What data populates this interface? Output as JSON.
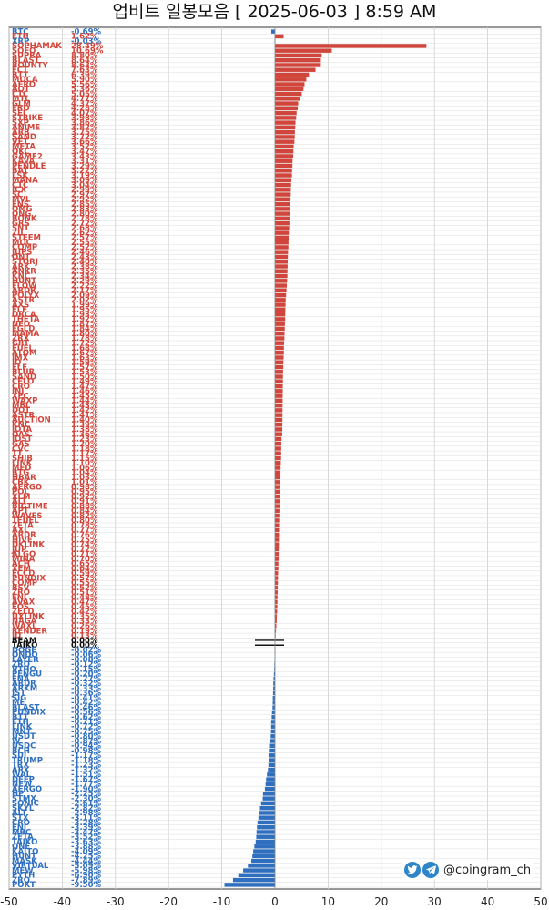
{
  "title": "업비트 일봉모음 [ 2025-06-03 ]  8:59 AM",
  "brand": {
    "handle": "@coingram_ch",
    "icons": [
      "twitter-icon",
      "telegram-icon"
    ]
  },
  "colors": {
    "up": "#d0463c",
    "down": "#2f6fbf",
    "flat": "#111111",
    "grid": "#cfcfcf"
  },
  "chart_data": {
    "type": "bar",
    "orientation": "horizontal",
    "grid": true,
    "xlim": [
      -50,
      50
    ],
    "xticks": [
      -50,
      -40,
      -30,
      -20,
      -10,
      0,
      10,
      20,
      30,
      40,
      50
    ],
    "top_rows": [
      {
        "symbol": "BTC",
        "label": "-0.69%",
        "value": -0.69
      },
      {
        "symbol": "ETH",
        "label": "1.62%",
        "value": 1.62
      },
      {
        "symbol": "XRP",
        "label": "-0.03%",
        "value": -0.03
      }
    ],
    "rows": [
      {
        "symbol": "SOPHAMAK",
        "label": "28.49%",
        "value": 28.49
      },
      {
        "symbol": "SOFO",
        "label": "10.69%",
        "value": 10.69
      },
      {
        "symbol": "SUPRA",
        "label": "8.80%",
        "value": 8.8
      },
      {
        "symbol": "BLAST",
        "label": "8.64%",
        "value": 8.64
      },
      {
        "symbol": "BOUNTY",
        "label": "8.63%",
        "value": 8.63
      },
      {
        "symbol": "FCT",
        "label": "7.63%",
        "value": 7.63
      },
      {
        "symbol": "BTT",
        "label": "6.39%",
        "value": 6.39
      },
      {
        "symbol": "MOCA",
        "label": "5.90%",
        "value": 5.9
      },
      {
        "symbol": "AERO",
        "label": "5.56%",
        "value": 5.56
      },
      {
        "symbol": "AQT",
        "label": "5.36%",
        "value": 5.36
      },
      {
        "symbol": "CTC",
        "label": "5.05%",
        "value": 5.05
      },
      {
        "symbol": "MTL",
        "label": "4.77%",
        "value": 4.77
      },
      {
        "symbol": "GLM",
        "label": "4.37%",
        "value": 4.37
      },
      {
        "symbol": "ERO",
        "label": "4.28%",
        "value": 4.28
      },
      {
        "symbol": "SEI",
        "label": "4.07%",
        "value": 4.07
      },
      {
        "symbol": "STRIKE",
        "label": "3.98%",
        "value": 3.98
      },
      {
        "symbol": "SXP",
        "label": "3.86%",
        "value": 3.86
      },
      {
        "symbol": "ANIME",
        "label": "3.82%",
        "value": 3.82
      },
      {
        "symbol": "ARB",
        "label": "3.75%",
        "value": 3.75
      },
      {
        "symbol": "SAND",
        "label": "3.72%",
        "value": 3.72
      },
      {
        "symbol": "VET",
        "label": "3.66%",
        "value": 3.66
      },
      {
        "symbol": "META",
        "label": "3.52%",
        "value": 3.52
      },
      {
        "symbol": "QKC",
        "label": "3.47%",
        "value": 3.47
      },
      {
        "symbol": "GAME2",
        "label": "3.43%",
        "value": 3.43
      },
      {
        "symbol": "KAVA",
        "label": "3.31%",
        "value": 3.31
      },
      {
        "symbol": "PENDLE",
        "label": "3.29%",
        "value": 3.29
      },
      {
        "symbol": "BAT",
        "label": "3.22%",
        "value": 3.22
      },
      {
        "symbol": "LSK",
        "label": "3.19%",
        "value": 3.19
      },
      {
        "symbol": "MANA",
        "label": "3.09%",
        "value": 3.09
      },
      {
        "symbol": "CTC",
        "label": "3.04%",
        "value": 3.04
      },
      {
        "symbol": "ICX",
        "label": "2.99%",
        "value": 2.99
      },
      {
        "symbol": "SC",
        "label": "2.97%",
        "value": 2.97
      },
      {
        "symbol": "MVL",
        "label": "2.92%",
        "value": 2.92
      },
      {
        "symbol": "ENS",
        "label": "2.85%",
        "value": 2.85
      },
      {
        "symbol": "OMG",
        "label": "2.83%",
        "value": 2.83
      },
      {
        "symbol": "ONG",
        "label": "2.80%",
        "value": 2.8
      },
      {
        "symbol": "BONK",
        "label": "2.78%",
        "value": 2.78
      },
      {
        "symbol": "GRS",
        "label": "2.72%",
        "value": 2.72
      },
      {
        "symbol": "SNT",
        "label": "2.68%",
        "value": 2.68
      },
      {
        "symbol": "ZIL",
        "label": "2.62%",
        "value": 2.62
      },
      {
        "symbol": "STEEM",
        "label": "2.57%",
        "value": 2.57
      },
      {
        "symbol": "MOC",
        "label": "2.55%",
        "value": 2.55
      },
      {
        "symbol": "COMP",
        "label": "2.52%",
        "value": 2.52
      },
      {
        "symbol": "JUPS",
        "label": "2.46%",
        "value": 2.46
      },
      {
        "symbol": "ONT",
        "label": "2.43%",
        "value": 2.43
      },
      {
        "symbol": "STORJ",
        "label": "2.40%",
        "value": 2.4
      },
      {
        "symbol": "ARK",
        "label": "2.38%",
        "value": 2.38
      },
      {
        "symbol": "ANKR",
        "label": "2.35%",
        "value": 2.35
      },
      {
        "symbol": "KNC",
        "label": "2.34%",
        "value": 2.34
      },
      {
        "symbol": "HUNT",
        "label": "2.29%",
        "value": 2.29
      },
      {
        "symbol": "FLOW",
        "label": "2.22%",
        "value": 2.22
      },
      {
        "symbol": "ARDR",
        "label": "2.17%",
        "value": 2.17
      },
      {
        "symbol": "POLYX",
        "label": "2.09%",
        "value": 2.09
      },
      {
        "symbol": "ASTR",
        "label": "2.02%",
        "value": 2.02
      },
      {
        "symbol": "AXS",
        "label": "1.99%",
        "value": 1.99
      },
      {
        "symbol": "ELF",
        "label": "1.95%",
        "value": 1.95
      },
      {
        "symbol": "ORCA",
        "label": "1.93%",
        "value": 1.93
      },
      {
        "symbol": "THETA",
        "label": "1.92%",
        "value": 1.92
      },
      {
        "symbol": "NEO",
        "label": "1.87%",
        "value": 1.87
      },
      {
        "symbol": "EGLD",
        "label": "1.84%",
        "value": 1.84
      },
      {
        "symbol": "MAMA",
        "label": "1.80%",
        "value": 1.8
      },
      {
        "symbol": "ZRX",
        "label": "1.78%",
        "value": 1.78
      },
      {
        "symbol": "GRT",
        "label": "1.72%",
        "value": 1.72
      },
      {
        "symbol": "FUEL",
        "label": "1.68%",
        "value": 1.68
      },
      {
        "symbol": "ATOM",
        "label": "1.67%",
        "value": 1.67
      },
      {
        "symbol": "IMX",
        "label": "1.63%",
        "value": 1.63
      },
      {
        "symbol": "IQ",
        "label": "1.59%",
        "value": 1.59
      },
      {
        "symbol": "ELF",
        "label": "1.57%",
        "value": 1.57
      },
      {
        "symbol": "BLUR",
        "label": "1.53%",
        "value": 1.53
      },
      {
        "symbol": "SAND",
        "label": "1.50%",
        "value": 1.5
      },
      {
        "symbol": "CELO",
        "label": "1.49%",
        "value": 1.49
      },
      {
        "symbol": "CRO",
        "label": "1.47%",
        "value": 1.47
      },
      {
        "symbol": "INJ",
        "label": "1.46%",
        "value": 1.46
      },
      {
        "symbol": "XEC",
        "label": "1.45%",
        "value": 1.45
      },
      {
        "symbol": "WAXP",
        "label": "1.44%",
        "value": 1.44
      },
      {
        "symbol": "MBL",
        "label": "1.43%",
        "value": 1.43
      },
      {
        "symbol": "DOT",
        "label": "1.42%",
        "value": 1.42
      },
      {
        "symbol": "ASTR",
        "label": "1.41%",
        "value": 1.41
      },
      {
        "symbol": "AUCTION",
        "label": "1.40%",
        "value": 1.4
      },
      {
        "symbol": "KNC",
        "label": "1.39%",
        "value": 1.39
      },
      {
        "symbol": "IOTA",
        "label": "1.38%",
        "value": 1.38
      },
      {
        "symbol": "OAS",
        "label": "1.36%",
        "value": 1.36
      },
      {
        "symbol": "IOST",
        "label": "1.23%",
        "value": 1.23
      },
      {
        "symbol": "GAS",
        "label": "1.20%",
        "value": 1.2
      },
      {
        "symbol": "CVC",
        "label": "1.18%",
        "value": 1.18
      },
      {
        "symbol": "TT",
        "label": "1.17%",
        "value": 1.17
      },
      {
        "symbol": "SHIB",
        "label": "1.15%",
        "value": 1.15
      },
      {
        "symbol": "LINK",
        "label": "1.10%",
        "value": 1.1
      },
      {
        "symbol": "MED",
        "label": "1.06%",
        "value": 1.06
      },
      {
        "symbol": "BTG",
        "label": "1.04%",
        "value": 1.04
      },
      {
        "symbol": "HBAR",
        "label": "1.03%",
        "value": 1.03
      },
      {
        "symbol": "CBK",
        "label": "1.01%",
        "value": 1.01
      },
      {
        "symbol": "AERGO",
        "label": "0.98%",
        "value": 0.98
      },
      {
        "symbol": "POL",
        "label": "0.95%",
        "value": 0.95
      },
      {
        "symbol": "XLM",
        "label": "0.92%",
        "value": 0.92
      },
      {
        "symbol": "ALT",
        "label": "0.91%",
        "value": 0.91
      },
      {
        "symbol": "BIGTIME",
        "label": "0.88%",
        "value": 0.88
      },
      {
        "symbol": "APT",
        "label": "0.84%",
        "value": 0.84
      },
      {
        "symbol": "WAVES",
        "label": "0.82%",
        "value": 0.82
      },
      {
        "symbol": "TFUEL",
        "label": "0.80%",
        "value": 0.8
      },
      {
        "symbol": "ZETA",
        "label": "0.78%",
        "value": 0.78
      },
      {
        "symbol": "AXL",
        "label": "0.77%",
        "value": 0.77
      },
      {
        "symbol": "ARDR",
        "label": "0.76%",
        "value": 0.76
      },
      {
        "symbol": "HIVE",
        "label": "0.75%",
        "value": 0.75
      },
      {
        "symbol": "DKLINK",
        "label": "0.74%",
        "value": 0.74
      },
      {
        "symbol": "JUP",
        "label": "0.72%",
        "value": 0.72
      },
      {
        "symbol": "ALGO",
        "label": "0.71%",
        "value": 0.71
      },
      {
        "symbol": "MINA",
        "label": "0.70%",
        "value": 0.7
      },
      {
        "symbol": "ACH",
        "label": "0.65%",
        "value": 0.65
      },
      {
        "symbol": "XEM",
        "label": "0.64%",
        "value": 0.64
      },
      {
        "symbol": "ECCD",
        "label": "0.59%",
        "value": 0.59
      },
      {
        "symbol": "PUNDIX",
        "label": "0.57%",
        "value": 0.57
      },
      {
        "symbol": "COMP",
        "label": "0.55%",
        "value": 0.55
      },
      {
        "symbol": "BSV",
        "label": "0.52%",
        "value": 0.52
      },
      {
        "symbol": "ZRO",
        "label": "0.51%",
        "value": 0.51
      },
      {
        "symbol": "ENJ",
        "label": "0.48%",
        "value": 0.48
      },
      {
        "symbol": "AVAX",
        "label": "0.47%",
        "value": 0.47
      },
      {
        "symbol": "EOS",
        "label": "0.45%",
        "value": 0.45
      },
      {
        "symbol": "ZELD",
        "label": "0.42%",
        "value": 0.42
      },
      {
        "symbol": "UXLINK",
        "label": "0.35%",
        "value": 0.35
      },
      {
        "symbol": "NAGA",
        "label": "0.33%",
        "value": 0.33
      },
      {
        "symbol": "WAXL",
        "label": "0.26%",
        "value": 0.26
      },
      {
        "symbol": "RENDER",
        "label": "0.19%",
        "value": 0.19
      },
      {
        "symbol": "ID",
        "label": "0.13%",
        "value": 0.13
      },
      {
        "symbol": "BEAM",
        "label": "0.00%",
        "value": 0.0
      },
      {
        "symbol": "TAIKO",
        "label": "0.00%",
        "value": 0.0
      },
      {
        "symbol": "DOGE",
        "label": "-0.02%",
        "value": -0.02
      },
      {
        "symbol": "ONDO",
        "label": "-0.06%",
        "value": -0.06
      },
      {
        "symbol": "LAYER",
        "label": "-0.08%",
        "value": -0.08
      },
      {
        "symbol": "ZRO",
        "label": "-0.12%",
        "value": -0.12
      },
      {
        "symbol": "VTHO",
        "label": "-0.15%",
        "value": -0.15
      },
      {
        "symbol": "PENGU",
        "label": "-0.20%",
        "value": -0.2
      },
      {
        "symbol": "ENA",
        "label": "-0.27%",
        "value": -0.27
      },
      {
        "symbol": "ARDR",
        "label": "-0.32%",
        "value": -0.32
      },
      {
        "symbol": "ARKM",
        "label": "-0.33%",
        "value": -0.33
      },
      {
        "symbol": "JST",
        "label": "-0.36%",
        "value": -0.36
      },
      {
        "symbol": "SIG",
        "label": "-0.41%",
        "value": -0.41
      },
      {
        "symbol": "ME",
        "label": "-0.42%",
        "value": -0.42
      },
      {
        "symbol": "BLAST",
        "label": "-0.46%",
        "value": -0.46
      },
      {
        "symbol": "PUNDIX",
        "label": "-0.56%",
        "value": -0.56
      },
      {
        "symbol": "BTT",
        "label": "-0.62%",
        "value": -0.62
      },
      {
        "symbol": "ETH",
        "label": "-0.71%",
        "value": -0.71
      },
      {
        "symbol": "LINK",
        "label": "-0.72%",
        "value": -0.72
      },
      {
        "symbol": "MNT",
        "label": "-0.75%",
        "value": -0.75
      },
      {
        "symbol": "USDT",
        "label": "-0.80%",
        "value": -0.8
      },
      {
        "symbol": "W",
        "label": "-0.87%",
        "value": -0.87
      },
      {
        "symbol": "USDC",
        "label": "-0.94%",
        "value": -0.94
      },
      {
        "symbol": "BCH",
        "label": "-0.98%",
        "value": -0.98
      },
      {
        "symbol": "SUI",
        "label": "-1.17%",
        "value": -1.17
      },
      {
        "symbol": "TRUMP",
        "label": "-1.18%",
        "value": -1.18
      },
      {
        "symbol": "TRX",
        "label": "-1.23%",
        "value": -1.23
      },
      {
        "symbol": "ARK",
        "label": "-1.32%",
        "value": -1.32
      },
      {
        "symbol": "WAL",
        "label": "-1.51%",
        "value": -1.51
      },
      {
        "symbol": "DEEP",
        "label": "-1.67%",
        "value": -1.67
      },
      {
        "symbol": "NEW",
        "label": "-1.77%",
        "value": -1.77
      },
      {
        "symbol": "AERGO",
        "label": "-1.90%",
        "value": -1.9
      },
      {
        "symbol": "HP",
        "label": "-2.25%",
        "value": -2.25
      },
      {
        "symbol": "STMX",
        "label": "-2.30%",
        "value": -2.3
      },
      {
        "symbol": "SONIC",
        "label": "-2.61%",
        "value": -2.61
      },
      {
        "symbol": "SKYL",
        "label": "-2.82%",
        "value": -2.82
      },
      {
        "symbol": "ALT",
        "label": "-2.98%",
        "value": -2.98
      },
      {
        "symbol": "STX",
        "label": "-3.11%",
        "value": -3.11
      },
      {
        "symbol": "CRO",
        "label": "-3.28%",
        "value": -3.28
      },
      {
        "symbol": "ENJ",
        "label": "-3.39%",
        "value": -3.39
      },
      {
        "symbol": "MBC",
        "label": "-3.47%",
        "value": -3.47
      },
      {
        "symbol": "ZETA",
        "label": "-3.52%",
        "value": -3.52
      },
      {
        "symbol": "TAIKO",
        "label": "-3.63%",
        "value": -3.63
      },
      {
        "symbol": "ONE",
        "label": "-3.88%",
        "value": -3.88
      },
      {
        "symbol": "KAITO",
        "label": "-4.09%",
        "value": -4.09
      },
      {
        "symbol": "HUNT",
        "label": "-4.25%",
        "value": -4.25
      },
      {
        "symbol": "MASK",
        "label": "-4.44%",
        "value": -4.44
      },
      {
        "symbol": "VIRTUAL",
        "label": "-5.09%",
        "value": -5.09
      },
      {
        "symbol": "MEW",
        "label": "-5.98%",
        "value": -5.98
      },
      {
        "symbol": "PYTH",
        "label": "-6.90%",
        "value": -6.9
      },
      {
        "symbol": "ZRO",
        "label": "-7.89%",
        "value": -7.89
      },
      {
        "symbol": "POKT",
        "label": "-9.50%",
        "value": -9.5
      }
    ]
  }
}
